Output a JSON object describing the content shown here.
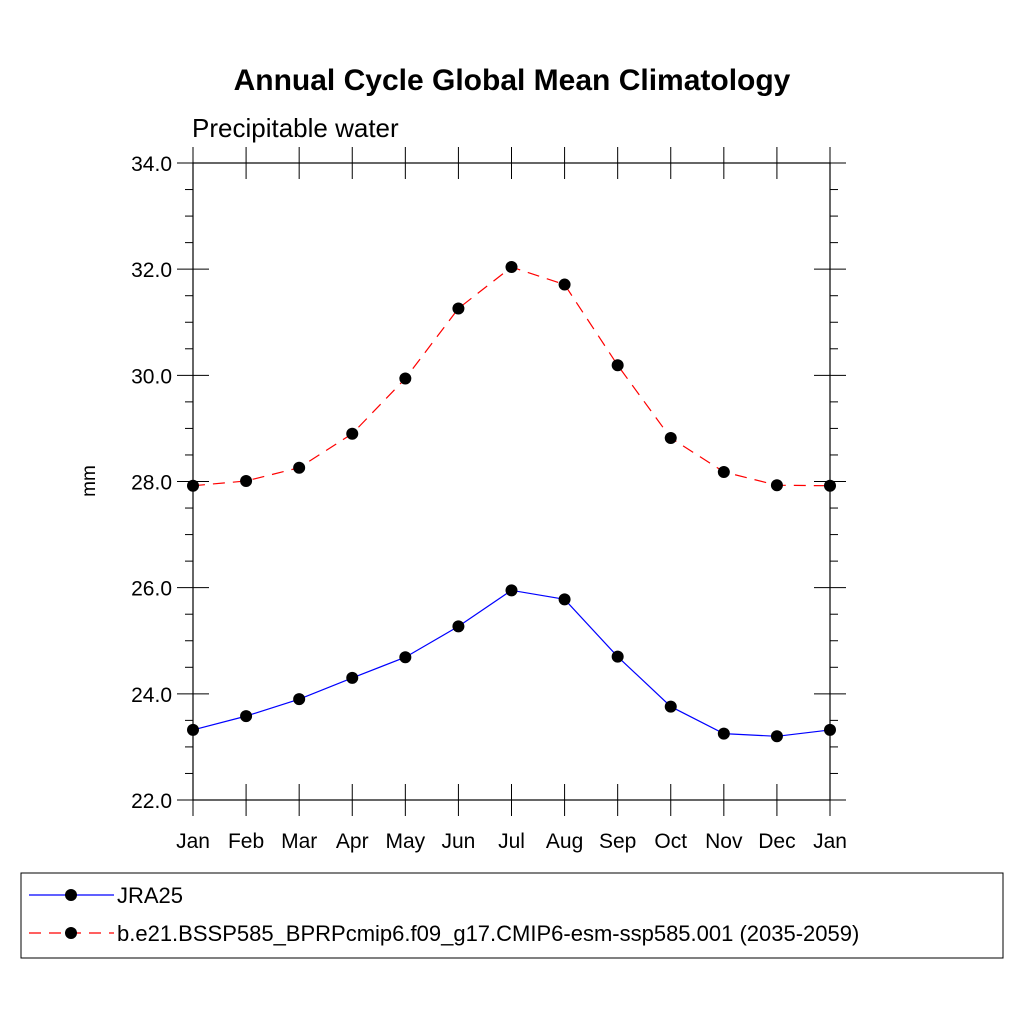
{
  "chart_data": {
    "type": "line",
    "title": "Annual Cycle Global Mean Climatology",
    "subtitle": "Precipitable water",
    "xlabel": "",
    "ylabel": "mm",
    "categories": [
      "Jan",
      "Feb",
      "Mar",
      "Apr",
      "May",
      "Jun",
      "Jul",
      "Aug",
      "Sep",
      "Oct",
      "Nov",
      "Dec",
      "Jan"
    ],
    "ylim": [
      22.0,
      34.0
    ],
    "yticks": [
      "22.0",
      "24.0",
      "26.0",
      "28.0",
      "30.0",
      "32.0",
      "34.0"
    ],
    "grid": false,
    "legend_position": "bottom",
    "series": [
      {
        "name": "JRA25",
        "color": "#0000ff",
        "dash": "solid",
        "marker": "filled-circle",
        "values": [
          23.32,
          23.58,
          23.9,
          24.3,
          24.69,
          25.27,
          25.95,
          25.78,
          24.7,
          23.76,
          23.25,
          23.2,
          23.32
        ]
      },
      {
        "name": "b.e21.BSSP585_BPRPcmip6.f09_g17.CMIP6-esm-ssp585.001 (2035-2059)",
        "color": "#ff0000",
        "dash": "dashed",
        "marker": "filled-circle",
        "values": [
          27.92,
          28.01,
          28.26,
          28.9,
          29.94,
          31.26,
          32.04,
          31.71,
          30.19,
          28.82,
          28.18,
          27.93,
          27.92
        ]
      }
    ]
  }
}
